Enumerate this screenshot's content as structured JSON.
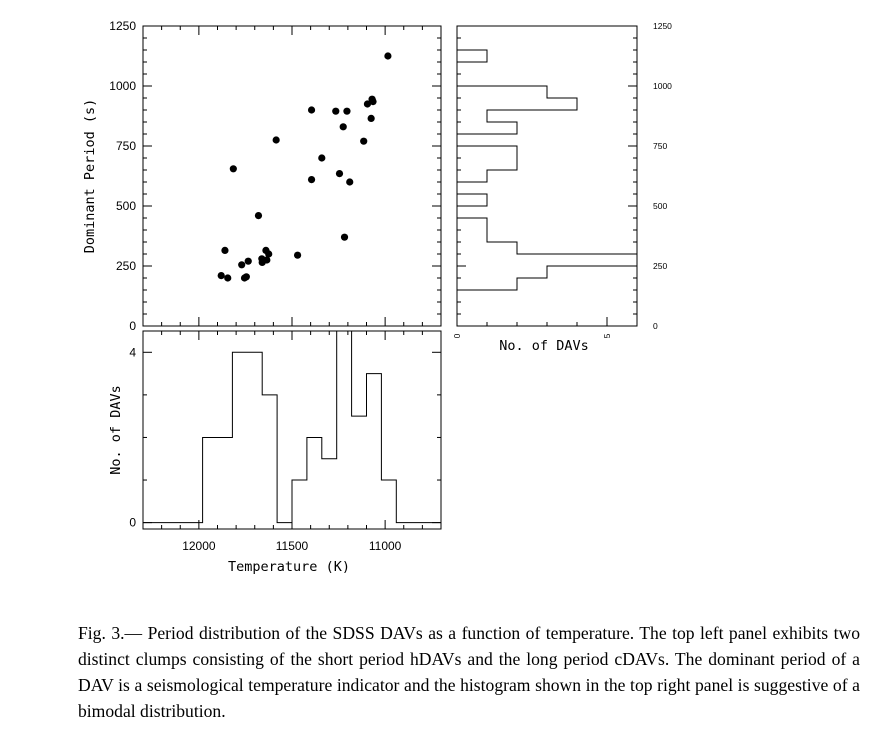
{
  "chart_data": [
    {
      "type": "scatter",
      "panel": "top-left",
      "xlabel": "",
      "ylabel": "Dominant Period (s)",
      "xlim": [
        12300,
        10700
      ],
      "ylim": [
        0,
        1250
      ],
      "y_ticks": [
        "0",
        "250",
        "500",
        "750",
        "1000",
        "1250"
      ],
      "points": [
        {
          "x": 11880,
          "y": 210
        },
        {
          "x": 11860,
          "y": 315
        },
        {
          "x": 11845,
          "y": 200
        },
        {
          "x": 11815,
          "y": 655
        },
        {
          "x": 11770,
          "y": 255
        },
        {
          "x": 11755,
          "y": 200
        },
        {
          "x": 11745,
          "y": 205
        },
        {
          "x": 11735,
          "y": 270
        },
        {
          "x": 11680,
          "y": 460
        },
        {
          "x": 11662,
          "y": 280
        },
        {
          "x": 11660,
          "y": 265
        },
        {
          "x": 11640,
          "y": 315
        },
        {
          "x": 11635,
          "y": 275
        },
        {
          "x": 11625,
          "y": 300
        },
        {
          "x": 11585,
          "y": 775
        },
        {
          "x": 11470,
          "y": 295
        },
        {
          "x": 11395,
          "y": 900
        },
        {
          "x": 11395,
          "y": 610
        },
        {
          "x": 11340,
          "y": 700
        },
        {
          "x": 11265,
          "y": 895
        },
        {
          "x": 11245,
          "y": 635
        },
        {
          "x": 11225,
          "y": 830
        },
        {
          "x": 11218,
          "y": 370
        },
        {
          "x": 11205,
          "y": 895
        },
        {
          "x": 11190,
          "y": 600
        },
        {
          "x": 11115,
          "y": 770
        },
        {
          "x": 11095,
          "y": 925
        },
        {
          "x": 11075,
          "y": 865
        },
        {
          "x": 11070,
          "y": 945
        },
        {
          "x": 11065,
          "y": 935
        },
        {
          "x": 10985,
          "y": 1125
        }
      ]
    },
    {
      "type": "bar",
      "panel": "top-right",
      "orientation": "horizontal",
      "xlabel": "No. of DAVs",
      "ylabel": "",
      "xlim": [
        0,
        6
      ],
      "ylim": [
        0,
        1250
      ],
      "x_ticks": [
        "0",
        "5"
      ],
      "y_ticks": [
        "0",
        "250",
        "500",
        "750",
        "1000",
        "1250"
      ],
      "bin_width": 50,
      "bin_edges_start": 0,
      "counts": [
        0,
        0,
        0,
        2,
        3,
        6,
        2,
        1,
        1,
        0,
        1,
        0,
        1,
        2,
        2,
        0,
        2,
        1,
        4,
        3,
        0,
        0,
        1,
        0,
        0
      ]
    },
    {
      "type": "bar",
      "panel": "bottom-left",
      "xlabel": "Temperature (K)",
      "ylabel": "No. of DAVs",
      "xlim": [
        12300,
        10700
      ],
      "ylim": [
        -0.15,
        4.5
      ],
      "x_ticks": [
        "12000",
        "11500",
        "11000"
      ],
      "y_ticks": [
        "0",
        "4"
      ],
      "bin_width": 80,
      "bin_edges_start": 12300,
      "counts": [
        0,
        0,
        0,
        0,
        2,
        2,
        4,
        4,
        3,
        0,
        1,
        2,
        1.5,
        4.5,
        2.5,
        3.5,
        1,
        0,
        0,
        0
      ]
    }
  ],
  "caption": {
    "label": "Fig. 3.—",
    "text": "Period distribution of the SDSS DAVs as a function of temperature. The top left panel exhibits two distinct clumps consisting of the short period hDAVs and the long period cDAVs. The dominant period of a DAV is a seismological temperature indicator and the histogram shown in the top right panel is suggestive of a bimodal distribution."
  },
  "colors": {
    "ink": "#000000",
    "background": "#ffffff"
  }
}
